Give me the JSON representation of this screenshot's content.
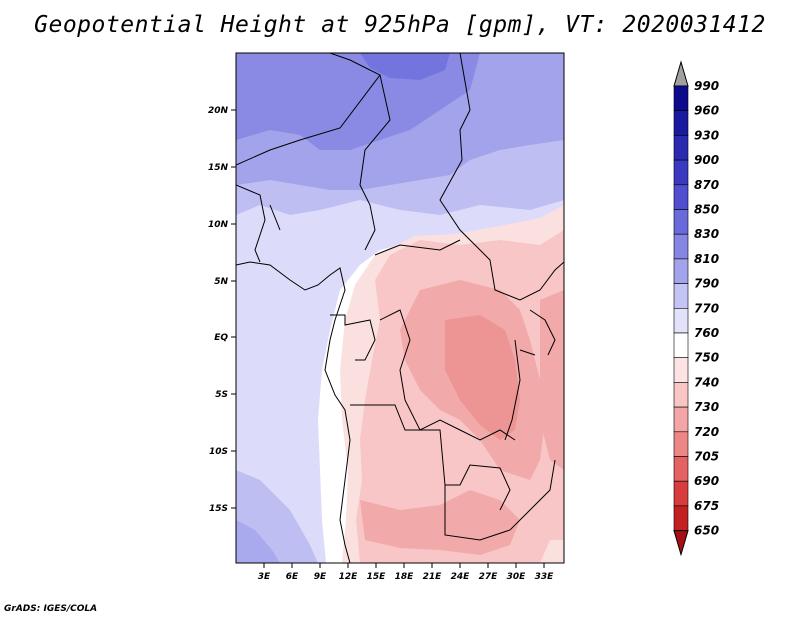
{
  "title": "Geopotential Height at 925hPa [gpm], VT: 2020031412",
  "footer": "GrADS: IGES/COLA",
  "lat_labels": [
    "20N",
    "15N",
    "10N",
    "5N",
    "EQ",
    "5S",
    "10S",
    "15S"
  ],
  "lon_labels": [
    "3E",
    "6E",
    "9E",
    "12E",
    "15E",
    "18E",
    "21E",
    "24E",
    "27E",
    "30E",
    "33E"
  ],
  "colorbar": {
    "labels": [
      "990",
      "960",
      "930",
      "900",
      "870",
      "850",
      "830",
      "810",
      "790",
      "770",
      "760",
      "750",
      "740",
      "730",
      "720",
      "705",
      "690",
      "675",
      "650"
    ],
    "colors": [
      "#a0a0a0",
      "#0b0b8c",
      "#1a1aa0",
      "#2a2ab0",
      "#3a3ac0",
      "#4f4fcf",
      "#6a6adb",
      "#8585e3",
      "#a3a3ec",
      "#c4c4f5",
      "#e2e2fb",
      "#ffffff",
      "#fde3e3",
      "#f9c6c6",
      "#f4a6a6",
      "#ee8686",
      "#e56262",
      "#d83c3c",
      "#c32121",
      "#a50f15"
    ]
  }
}
